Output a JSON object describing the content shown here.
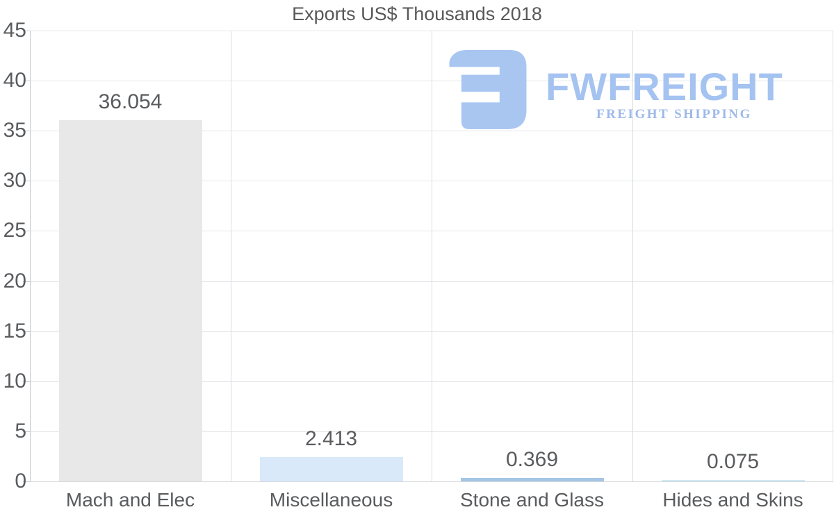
{
  "title": "Exports US$ Thousands 2018",
  "chart_data": {
    "type": "bar",
    "title": "Exports US$ Thousands 2018",
    "categories": [
      "Mach and Elec",
      "Miscellaneous",
      "Stone and Glass",
      "Hides and Skins"
    ],
    "values": [
      36.054,
      2.413,
      0.369,
      0.075
    ],
    "value_labels": [
      "36.054",
      "2.413",
      "0.369",
      "0.075"
    ],
    "bar_colors": [
      "#e8e8e8",
      "#d9e9f9",
      "#a5c6e5",
      "#cfe9f2"
    ],
    "ylim": [
      0,
      45
    ],
    "yticks": [
      45,
      40,
      35,
      30,
      25,
      20,
      15,
      10,
      5,
      0
    ],
    "xlabel": "",
    "ylabel": "",
    "grid": true,
    "legend": false
  },
  "logo": {
    "mark_icon": "fwfreight-f-mark",
    "wordmark": "FWFREIGHT",
    "tagline": "FREIGHT SHIPPING",
    "mark_color": "#a9c6f1",
    "wordmark_color": "#a5c3f1",
    "tagline_color": "#9db9ea"
  },
  "colors": {
    "background": "#ffffff",
    "grid_horizontal": "#e4e6e9",
    "grid_vertical": "#d9dbde",
    "axis": "#c6cacd",
    "text": "#595b5e",
    "title_text": "#58585a"
  }
}
